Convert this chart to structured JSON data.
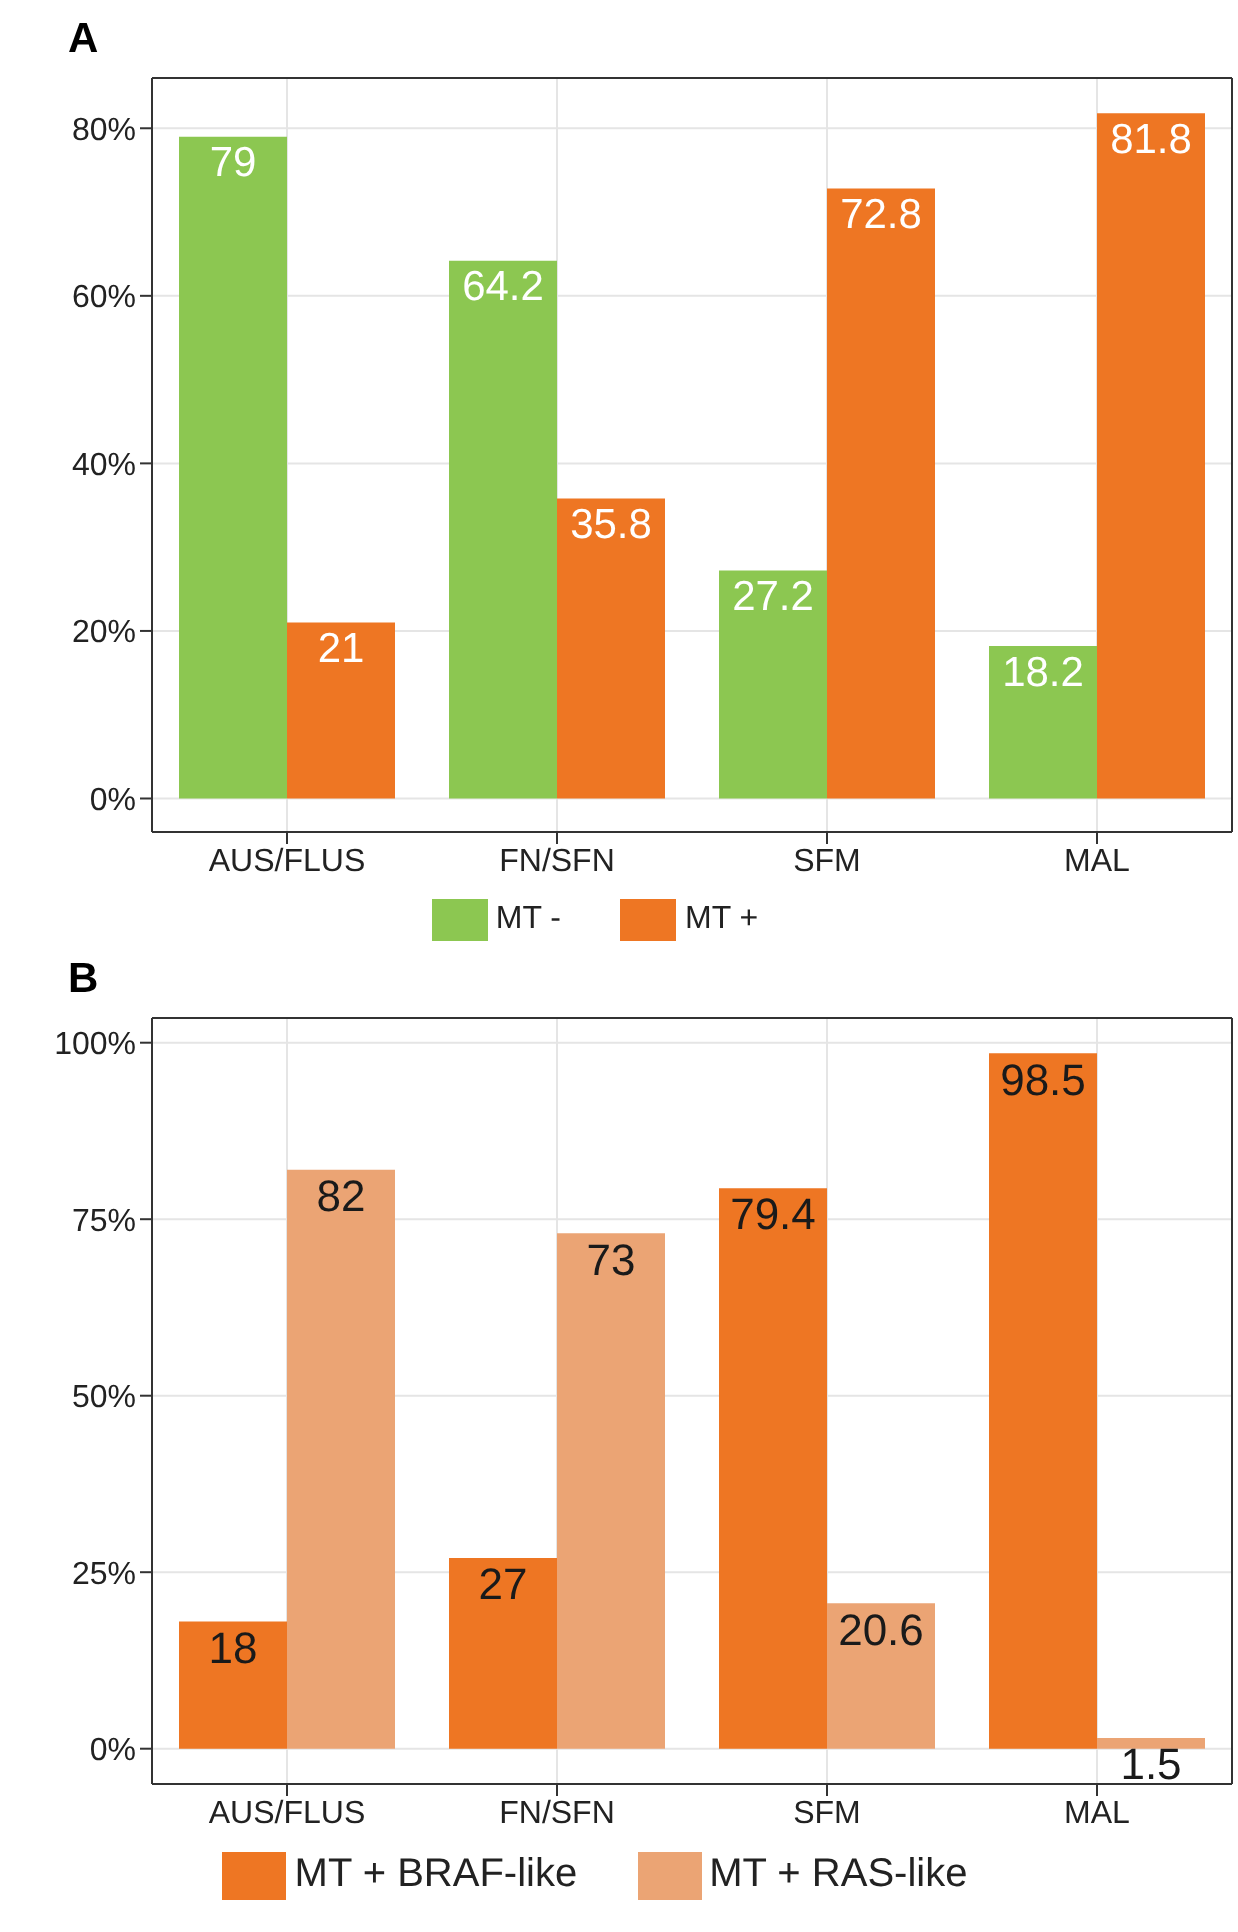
{
  "chart_data": [
    {
      "type": "bar",
      "title": "A",
      "categories": [
        "AUS/FLUS",
        "FN/SFN",
        "SFM",
        "MAL"
      ],
      "series": [
        {
          "name": "MT -",
          "color": "#8cc751",
          "values": [
            79,
            64.2,
            27.2,
            18.2
          ]
        },
        {
          "name": "MT +",
          "color": "#ee7623",
          "values": [
            21,
            35.8,
            72.8,
            81.8
          ]
        }
      ],
      "ylim": [
        -4,
        86
      ],
      "yticks": [
        {
          "value": 0,
          "label": "0%"
        },
        {
          "value": 20,
          "label": "20%"
        },
        {
          "value": 40,
          "label": "40%"
        },
        {
          "value": 60,
          "label": "60%"
        },
        {
          "value": 80,
          "label": "80%"
        }
      ],
      "grid": true,
      "legend": "bottom",
      "data_labels": true
    },
    {
      "type": "bar",
      "title": "B",
      "categories": [
        "AUS/FLUS",
        "FN/SFN",
        "SFM",
        "MAL"
      ],
      "series": [
        {
          "name": "MT + BRAF-like",
          "color": "#ee7623",
          "values": [
            18,
            27,
            79.4,
            98.5
          ]
        },
        {
          "name": "MT + RAS-like",
          "color": "#eba474",
          "values": [
            82,
            73,
            20.6,
            1.5
          ]
        }
      ],
      "ylim": [
        -5,
        103.5
      ],
      "yticks": [
        {
          "value": 0,
          "label": "0%"
        },
        {
          "value": 25,
          "label": "25%"
        },
        {
          "value": 50,
          "label": "50%"
        },
        {
          "value": 75,
          "label": "75%"
        },
        {
          "value": 100,
          "label": "100%"
        }
      ],
      "grid": true,
      "legend": "bottom",
      "data_labels": true
    }
  ]
}
